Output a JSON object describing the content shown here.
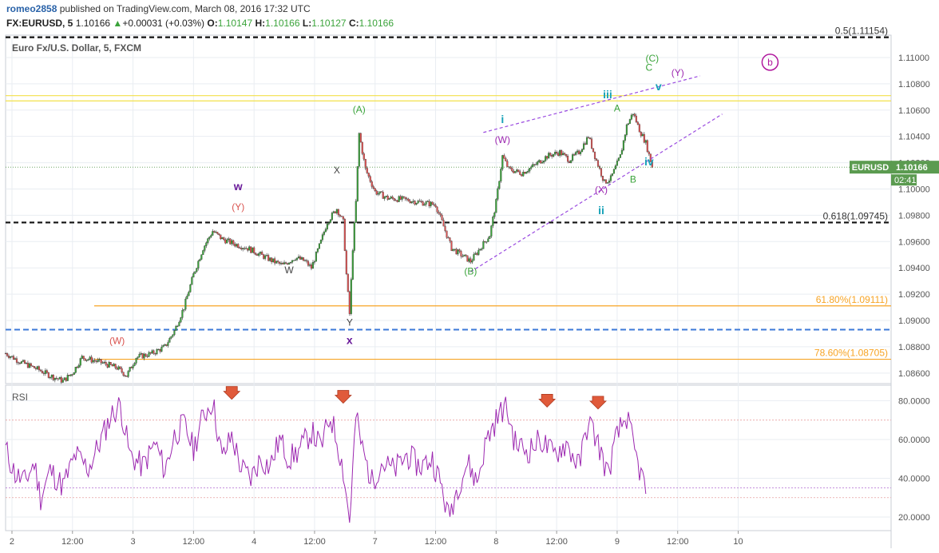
{
  "header": {
    "author": "romeo2858",
    "published_text": "published on TradingView.com, March 08, 2016 17:32 UTC",
    "symbol": "FX:EURUSD, 5",
    "last": "1.10166",
    "change_arrow": "▲",
    "change": "+0.00031 (+0.03%)",
    "o_label": "O:",
    "o": "1.10147",
    "h_label": "H:",
    "h": "1.10166",
    "l_label": "L:",
    "l": "1.10127",
    "c_label": "C:",
    "c": "1.10166"
  },
  "colors": {
    "up": "#3aa33a",
    "down": "#e05252",
    "grid": "#e9edf2",
    "rsi_line": "#9c27b0",
    "price_tag": "#5b9b50",
    "fib_orange": "#f7a425",
    "dash_black": "#111111",
    "dash_blue": "#3d7ad8",
    "yellow": "#f2e04a",
    "wedge": "#9a4ae0"
  },
  "chart_data": [
    {
      "type": "candlestick",
      "title": "Euro Fx/U.S. Dollar, 5, FXCM",
      "x_ticks": [
        "2",
        "12:00",
        "3",
        "12:00",
        "4",
        "12:00",
        "7",
        "12:00",
        "8",
        "12:00",
        "9",
        "12:00",
        "10"
      ],
      "y_ticks": [
        "1.11000",
        "1.10800",
        "1.10600",
        "1.10400",
        "1.10200",
        "1.10000",
        "1.09800",
        "1.09600",
        "1.09400",
        "1.09200",
        "1.09000",
        "1.08800",
        "1.08600"
      ],
      "ylim": [
        1.0852,
        1.1117
      ],
      "current_price_label": "EURUSD",
      "current_price": "1.10166",
      "countdown": "02:41",
      "price_path": [
        [
          0,
          1.0875
        ],
        [
          5,
          1.0868
        ],
        [
          10,
          1.0863
        ],
        [
          14,
          1.0858
        ],
        [
          18,
          1.0854
        ],
        [
          21,
          1.086
        ],
        [
          24,
          1.0872
        ],
        [
          30,
          1.0868
        ],
        [
          35,
          1.0864
        ],
        [
          38,
          1.0858
        ],
        [
          41,
          1.0872
        ],
        [
          46,
          1.0875
        ],
        [
          50,
          1.088
        ],
        [
          53,
          1.0892
        ],
        [
          56,
          1.091
        ],
        [
          59,
          1.0935
        ],
        [
          62,
          1.0955
        ],
        [
          65,
          1.0968
        ],
        [
          68,
          1.0962
        ],
        [
          72,
          1.0958
        ],
        [
          76,
          1.0955
        ],
        [
          80,
          1.095
        ],
        [
          84,
          1.0945
        ],
        [
          87,
          1.0942
        ],
        [
          91,
          1.0948
        ],
        [
          94,
          1.0945
        ],
        [
          96,
          1.094
        ],
        [
          99,
          1.096
        ],
        [
          101,
          1.0975
        ],
        [
          104,
          1.0985
        ],
        [
          106,
          1.0975
        ],
        [
          107,
          1.0935
        ],
        [
          108,
          1.0905
        ],
        [
          109,
          1.0955
        ],
        [
          110,
          1.099
        ],
        [
          111,
          1.1042
        ],
        [
          113,
          1.1015
        ],
        [
          116,
          1.0998
        ],
        [
          120,
          1.0993
        ],
        [
          125,
          1.0992
        ],
        [
          130,
          1.099
        ],
        [
          135,
          1.0988
        ],
        [
          137,
          1.0975
        ],
        [
          140,
          1.0955
        ],
        [
          143,
          1.095
        ],
        [
          146,
          1.0945
        ],
        [
          149,
          1.0955
        ],
        [
          152,
          1.0965
        ],
        [
          154,
          1.099
        ],
        [
          156,
          1.1025
        ],
        [
          158,
          1.1015
        ],
        [
          162,
          1.1012
        ],
        [
          166,
          1.1018
        ],
        [
          170,
          1.1025
        ],
        [
          174,
          1.1028
        ],
        [
          177,
          1.1022
        ],
        [
          180,
          1.1028
        ],
        [
          183,
          1.104
        ],
        [
          185,
          1.1025
        ],
        [
          188,
          1.1005
        ],
        [
          190,
          1.1008
        ],
        [
          193,
          1.1025
        ],
        [
          195,
          1.1048
        ],
        [
          197,
          1.1058
        ],
        [
          199,
          1.1045
        ],
        [
          201,
          1.1035
        ],
        [
          203,
          1.1017
        ]
      ],
      "levels": [
        {
          "label": "0.5(1.11154)",
          "value": 1.11154,
          "style": "dash-black"
        },
        {
          "label": "0.618(1.09745)",
          "value": 1.09745,
          "style": "dash-black"
        },
        {
          "label": "61.80%(1.09111)",
          "value": 1.09111,
          "style": "fib-orange"
        },
        {
          "label": "78.60%(1.08705)",
          "value": 1.08705,
          "style": "fib-orange"
        },
        {
          "label": "",
          "value": 1.0893,
          "style": "dash-blue"
        },
        {
          "label": "",
          "value": 1.1071,
          "style": "yellow"
        },
        {
          "label": "",
          "value": 1.1067,
          "style": "yellow"
        }
      ],
      "annotations": [
        {
          "text": "w",
          "x": 73,
          "price": 1.0999,
          "color": "#6a1b9a",
          "bold": true
        },
        {
          "text": "(Y)",
          "x": 73,
          "price": 1.0984,
          "color": "#d9534f"
        },
        {
          "text": "X",
          "x": 104,
          "price": 1.1012,
          "color": "#444"
        },
        {
          "text": "(A)",
          "x": 111,
          "price": 1.1058,
          "color": "#3aa33a"
        },
        {
          "text": "W",
          "x": 89,
          "price": 1.0936,
          "color": "#444"
        },
        {
          "text": "Y",
          "x": 108,
          "price": 1.0896,
          "color": "#444"
        },
        {
          "text": "x",
          "x": 108,
          "price": 1.0882,
          "color": "#6a1b9a",
          "bold": true
        },
        {
          "text": "(W)",
          "x": 35,
          "price": 1.0882,
          "color": "#d9534f"
        },
        {
          "text": "(B)",
          "x": 146,
          "price": 1.0935,
          "color": "#3aa33a"
        },
        {
          "text": "i",
          "x": 156,
          "price": 1.105,
          "color": "#17a2b8",
          "bold": true
        },
        {
          "text": "(W)",
          "x": 156,
          "price": 1.1035,
          "color": "#9c27b0"
        },
        {
          "text": "(X)",
          "x": 187,
          "price": 1.0997,
          "color": "#9c27b0"
        },
        {
          "text": "ii",
          "x": 187,
          "price": 1.0981,
          "color": "#17a2b8",
          "bold": true
        },
        {
          "text": "iii",
          "x": 189,
          "price": 1.1069,
          "color": "#17a2b8",
          "bold": true
        },
        {
          "text": "A",
          "x": 192,
          "price": 1.1059,
          "color": "#3aa33a"
        },
        {
          "text": "B",
          "x": 197,
          "price": 1.1005,
          "color": "#3aa33a"
        },
        {
          "text": "iv",
          "x": 202,
          "price": 1.1018,
          "color": "#17a2b8",
          "bold": true
        },
        {
          "text": "(C)",
          "x": 203,
          "price": 1.1097,
          "color": "#3aa33a"
        },
        {
          "text": "C",
          "x": 202,
          "price": 1.109,
          "color": "#3aa33a"
        },
        {
          "text": "v",
          "x": 205,
          "price": 1.1075,
          "color": "#17a2b8",
          "bold": true
        },
        {
          "text": "(Y)",
          "x": 211,
          "price": 1.1086,
          "color": "#9c27b0"
        },
        {
          "text": "b",
          "x": 240,
          "price": 1.1094,
          "color": "#b0169d",
          "circled": true
        }
      ]
    },
    {
      "type": "line",
      "title": "RSI",
      "y_ticks": [
        "80.0000",
        "60.0000",
        "40.0000",
        "20.0000"
      ],
      "ylim": [
        13,
        88
      ],
      "levels": [
        70,
        30
      ],
      "values_path": [
        [
          0,
          55
        ],
        [
          3,
          42
        ],
        [
          6,
          38
        ],
        [
          9,
          48
        ],
        [
          11,
          30
        ],
        [
          14,
          44
        ],
        [
          18,
          36
        ],
        [
          22,
          52
        ],
        [
          26,
          45
        ],
        [
          30,
          60
        ],
        [
          33,
          72
        ],
        [
          36,
          78
        ],
        [
          39,
          52
        ],
        [
          43,
          46
        ],
        [
          47,
          58
        ],
        [
          50,
          44
        ],
        [
          53,
          62
        ],
        [
          56,
          68
        ],
        [
          59,
          55
        ],
        [
          62,
          72
        ],
        [
          65,
          80
        ],
        [
          68,
          50
        ],
        [
          71,
          62
        ],
        [
          74,
          45
        ],
        [
          77,
          40
        ],
        [
          80,
          50
        ],
        [
          83,
          46
        ],
        [
          86,
          60
        ],
        [
          89,
          50
        ],
        [
          92,
          54
        ],
        [
          96,
          64
        ],
        [
          99,
          56
        ],
        [
          102,
          72
        ],
        [
          104,
          60
        ],
        [
          106,
          44
        ],
        [
          108,
          18
        ],
        [
          110,
          72
        ],
        [
          112,
          55
        ],
        [
          115,
          38
        ],
        [
          118,
          48
        ],
        [
          122,
          44
        ],
        [
          126,
          52
        ],
        [
          130,
          46
        ],
        [
          134,
          50
        ],
        [
          137,
          35
        ],
        [
          139,
          20
        ],
        [
          142,
          36
        ],
        [
          145,
          48
        ],
        [
          148,
          38
        ],
        [
          151,
          60
        ],
        [
          154,
          70
        ],
        [
          157,
          78
        ],
        [
          160,
          58
        ],
        [
          164,
          54
        ],
        [
          168,
          60
        ],
        [
          172,
          52
        ],
        [
          176,
          58
        ],
        [
          180,
          46
        ],
        [
          183,
          70
        ],
        [
          186,
          58
        ],
        [
          189,
          42
        ],
        [
          192,
          62
        ],
        [
          195,
          72
        ],
        [
          198,
          50
        ],
        [
          201,
          34
        ]
      ],
      "signal_arrows": [
        {
          "x": 71,
          "value": 84
        },
        {
          "x": 106,
          "value": 82
        },
        {
          "x": 170,
          "value": 80
        },
        {
          "x": 186,
          "value": 79
        }
      ]
    }
  ]
}
